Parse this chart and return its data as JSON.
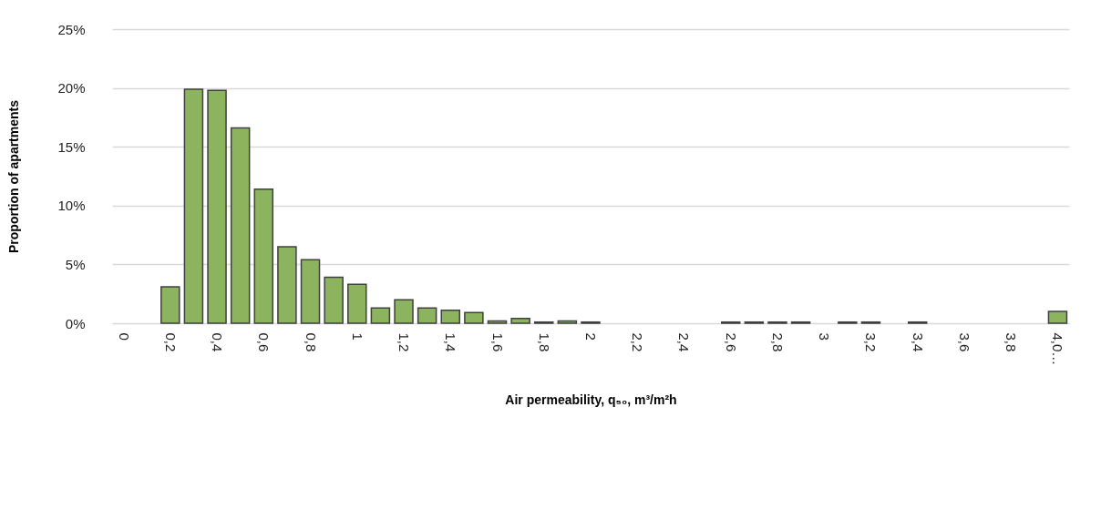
{
  "chart_data": {
    "type": "bar",
    "xlabel": "Air permeability, q₅₀, m³/m²h",
    "ylabel": "Proportion of apartments",
    "categories": [
      "0",
      null,
      "0,2",
      null,
      "0,4",
      null,
      "0,6",
      null,
      "0,8",
      null,
      "1",
      null,
      "1,2",
      null,
      "1,4",
      null,
      "1,6",
      null,
      "1,8",
      null,
      "2",
      null,
      "2,2",
      null,
      "2,4",
      null,
      "2,6",
      null,
      "2,8",
      null,
      "3",
      null,
      "3,2",
      null,
      "3,4",
      null,
      "3,6",
      null,
      "3,8",
      null,
      "4,0…"
    ],
    "values": [
      0,
      0,
      3.1,
      19.9,
      19.8,
      16.6,
      11.4,
      6.5,
      5.4,
      3.9,
      3.3,
      1.3,
      2.0,
      1.3,
      1.1,
      0.9,
      0.2,
      0.4,
      0.1,
      0.2,
      0.1,
      0,
      0,
      0,
      0,
      0,
      0.1,
      0.1,
      0.1,
      0.1,
      0,
      0.1,
      0.1,
      0,
      0.1,
      0,
      0,
      0,
      0,
      0,
      1.0
    ],
    "color": "#8cb35e",
    "ylim": [
      0,
      25
    ],
    "yticks": [
      {
        "value": 0,
        "label": "0%"
      },
      {
        "value": 5,
        "label": "5%"
      },
      {
        "value": 10,
        "label": "10%"
      },
      {
        "value": 15,
        "label": "15%"
      },
      {
        "value": 20,
        "label": "20%"
      },
      {
        "value": 25,
        "label": "25%"
      }
    ],
    "grid": "y"
  }
}
